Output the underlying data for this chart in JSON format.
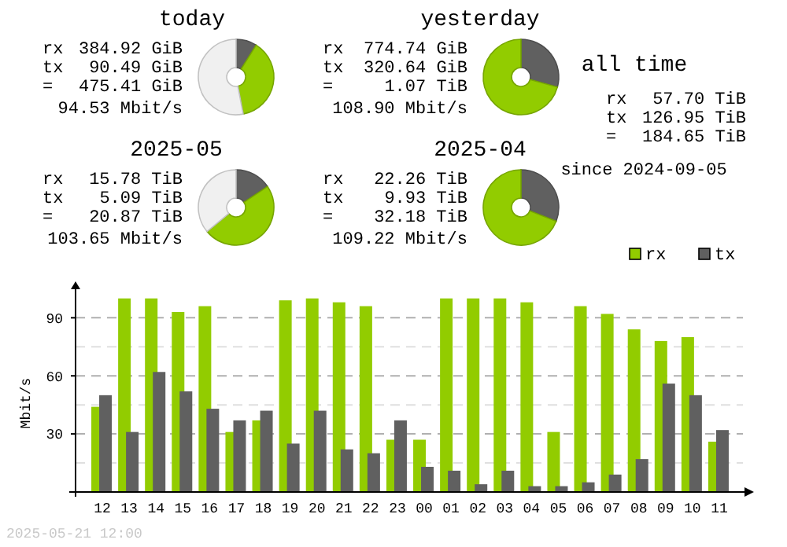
{
  "chart_data": [
    {
      "type": "donut",
      "title": "today",
      "categories": [
        null,
        null,
        null
      ],
      "values": [
        8.9,
        38.1,
        53
      ],
      "colors": [
        "#606060",
        "#92cc00",
        "#f0f0f0"
      ],
      "annotations": [
        "rx 384.92 GiB",
        "tx 90.49 GiB",
        "= 475.41 GiB",
        "94.53 Mbit/s"
      ]
    },
    {
      "type": "donut",
      "title": "yesterday",
      "categories": [
        null,
        null
      ],
      "values": [
        29.3,
        70.7
      ],
      "colors": [
        "#606060",
        "#92cc00"
      ],
      "annotations": [
        "rx 774.74 GiB",
        "tx 320.64 GiB",
        "= 1.07 TiB",
        "108.90 Mbit/s"
      ]
    },
    {
      "type": "donut",
      "title": "2025-05",
      "categories": [
        null,
        null,
        null
      ],
      "values": [
        15.6,
        48.4,
        36
      ],
      "colors": [
        "#606060",
        "#92cc00",
        "#f0f0f0"
      ],
      "annotations": [
        "rx 15.78 TiB",
        "tx 5.09 TiB",
        "= 20.87 TiB",
        "103.65 Mbit/s"
      ]
    },
    {
      "type": "donut",
      "title": "2025-04",
      "categories": [
        null,
        null
      ],
      "values": [
        30.9,
        69.1
      ],
      "colors": [
        "#606060",
        "#92cc00"
      ],
      "annotations": [
        "rx 22.26 TiB",
        "tx 9.93 TiB",
        "= 32.18 TiB",
        "109.22 Mbit/s"
      ]
    },
    {
      "type": "other",
      "title": "all time",
      "annotations": [
        "rx 57.70 TiB",
        "tx 126.95 TiB",
        "= 184.65 TiB",
        "since 2024-09-05"
      ]
    },
    {
      "type": "bar",
      "ylabel": "Mbit/s",
      "categories": [
        "12",
        "13",
        "14",
        "15",
        "16",
        "17",
        "18",
        "19",
        "20",
        "21",
        "22",
        "23",
        "00",
        "01",
        "02",
        "03",
        "04",
        "05",
        "06",
        "07",
        "08",
        "09",
        "10",
        "11"
      ],
      "series": [
        {
          "name": "rx",
          "color": "#92cc00",
          "values": [
            44,
            100,
            100,
            93,
            96,
            31,
            37,
            99,
            100,
            98,
            96,
            27,
            27,
            100,
            100,
            100,
            98,
            31,
            96,
            92,
            84,
            78,
            80,
            26
          ]
        },
        {
          "name": "tx",
          "color": "#606060",
          "values": [
            50,
            31,
            62,
            52,
            43,
            37,
            42,
            25,
            42,
            22,
            20,
            37,
            13,
            11,
            4,
            11,
            3,
            3,
            5,
            9,
            17,
            56,
            50,
            32
          ]
        }
      ],
      "ylim": [
        0,
        108
      ],
      "yticks": [
        {
          "value": 15,
          "label": null
        },
        30,
        {
          "value": 45,
          "label": null
        },
        60,
        {
          "value": 75,
          "label": null
        },
        90
      ],
      "grid": "y",
      "legend": "top right",
      "annotations": [
        "2025-05-21 12:00"
      ]
    }
  ]
}
